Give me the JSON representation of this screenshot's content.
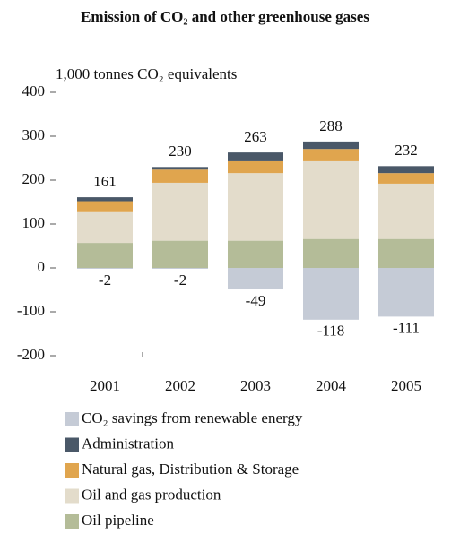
{
  "chart_data": {
    "type": "stacked_bar",
    "title": "Emission of CO₂ and other greenhouse gases",
    "y_axis_label": "1,000 tonnes CO₂ equivalents",
    "categories": [
      "2001",
      "2002",
      "2003",
      "2004",
      "2005"
    ],
    "series": [
      {
        "name": "CO₂ savings from renewable energy",
        "color": "#c5cbd6",
        "values": [
          -2,
          -2,
          -49,
          -118,
          -111
        ]
      },
      {
        "name": "Administration",
        "color": "#4a5868",
        "values": [
          9,
          6,
          20,
          17,
          16
        ]
      },
      {
        "name": "Natural gas, Distribution & Storage",
        "color": "#e0a54e",
        "values": [
          25,
          30,
          27,
          28,
          24
        ]
      },
      {
        "name": "Oil and gas production",
        "color": "#e3dccb",
        "values": [
          70,
          132,
          154,
          177,
          126
        ]
      },
      {
        "name": "Oil pipeline",
        "color": "#b4bc98",
        "values": [
          57,
          62,
          62,
          66,
          66
        ]
      }
    ],
    "totals": [
      161,
      230,
      263,
      288,
      232
    ],
    "ylim": [
      -200,
      400
    ],
    "yticks": [
      -200,
      -100,
      0,
      100,
      200,
      300,
      400
    ]
  }
}
